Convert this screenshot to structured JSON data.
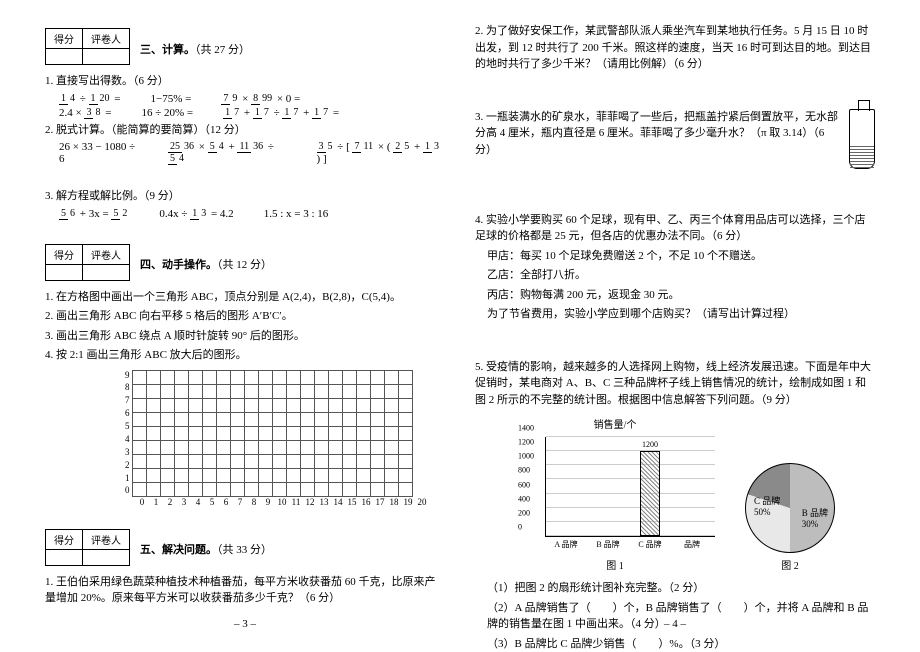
{
  "scorebox": {
    "col1": "得分",
    "col2": "评卷人"
  },
  "section3": {
    "title": "三、计算。",
    "points": "（共 27 分）",
    "q1": {
      "text": "1. 直接写出得数。（6 分）",
      "items": [
        "1/4 ÷ 1/20 =",
        "1−75% =",
        "7/9 × 8/99 × 0 =",
        "2.4 × 3/8 =",
        "16 ÷ 20% =",
        "1/7 + 1/7 ÷ 1/7 + 1/7 ="
      ]
    },
    "q2": {
      "text": "2. 脱式计算。（能简算的要简算）（12 分）",
      "items": [
        "26 × 33 − 1080 ÷ 6",
        "25/36 × 5/4 + 11/36 ÷ 5/4",
        "3/5 ÷ [ 7/11 × ( 2/5 + 1/3 ) ]"
      ]
    },
    "q3": {
      "text": "3. 解方程或解比例。（9 分）",
      "items": [
        "5/6 + 3x = 5/2",
        "0.4x ÷ 1/3 = 4.2",
        "1.5 : x = 3 : 16"
      ]
    }
  },
  "section4": {
    "title": "四、动手操作。",
    "points": "（共 12 分）",
    "q1": "1. 在方格图中画出一个三角形 ABC，顶点分别是 A(2,4)，B(2,8)，C(5,4)。",
    "q2": "2. 画出三角形 ABC 向右平移 5 格后的图形 A′B′C′。",
    "q3": "3. 画出三角形 ABC 绕点 A 顺时针旋转 90° 后的图形。",
    "q4": "4. 按 2:1 画出三角形 ABC 放大后的图形。",
    "grid": {
      "rows": 9,
      "cols": 20
    },
    "xaxis": [
      "0",
      "1",
      "2",
      "3",
      "4",
      "5",
      "6",
      "7",
      "8",
      "9",
      "10",
      "11",
      "12",
      "13",
      "14",
      "15",
      "16",
      "17",
      "18",
      "19",
      "20"
    ]
  },
  "section5": {
    "title": "五、解决问题。",
    "points": "（共 33 分）",
    "q1": "1. 王伯伯采用绿色蔬菜种植技术种植番茄，每平方米收获番茄 60 千克，比原来产量增加 20%。原来每平方米可以收获番茄多少千克？（6 分）",
    "q2": "2. 为了做好安保工作，某武警部队派人乘坐汽车到某地执行任务。5 月 15 日 10 时出发，到 12 时共行了 200 千米。照这样的速度，当天 16 时可到达目的地。到达目的地时共行了多少千米？（请用比例解）（6 分）",
    "q3": "3. 一瓶装满水的矿泉水，菲菲喝了一些后，把瓶盖拧紧后倒置放平，无水部分高 4 厘米，瓶内直径是 6 厘米。菲菲喝了多少毫升水？（π 取 3.14）（6 分）",
    "q4": {
      "stem": "4. 实验小学要购买 60 个足球，现有甲、乙、丙三个体育用品店可以选择，三个店足球的价格都是 25 元，但各店的优惠办法不同。（6 分）",
      "a": "甲店：每买 10 个足球免费赠送 2 个，不足 10 个不赠送。",
      "b": "乙店：全部打八折。",
      "c": "丙店：购物每满 200 元，返现金 30 元。",
      "ask": "为了节省费用，实验小学应到哪个店购买？（请写出计算过程）"
    },
    "q5": {
      "stem": "5. 受疫情的影响，越来越多的人选择网上购物，线上经济发展迅速。下面是年中大促销时，某电商对 A、B、C 三种品牌杯子线上销售情况的统计，绘制成如图 1 和图 2 所示的不完整的统计图。根据图中信息解答下列问题。（9 分）",
      "chart_title": "销售量/个",
      "bars": {
        "yticks": [
          0,
          200,
          400,
          600,
          800,
          1000,
          1200,
          1400
        ],
        "categories": [
          "A 品牌",
          "B 品牌",
          "C 品牌",
          "品牌"
        ],
        "values": [
          null,
          null,
          1200,
          null
        ],
        "bar_color": "#999",
        "known_bar_index": 2,
        "known_bar_label": "1200"
      },
      "pie": {
        "slices": [
          {
            "label": "C 品牌",
            "pct": 50,
            "color": "#bdbdbd"
          },
          {
            "label": "B 品牌",
            "pct": 30,
            "color": "#e8e8e8"
          },
          {
            "label": "A 品牌",
            "pct": 20,
            "color": "#8a8a8a"
          }
        ],
        "labels_shown": [
          "C 品牌 50%",
          "B 品牌 30%"
        ]
      },
      "fig1": "图 1",
      "fig2": "图 2",
      "sub1": "（1）把图 2 的扇形统计图补充完整。（2 分）",
      "sub2": "（2）A 品牌销售了（　　）个，B 品牌销售了（　　）个，并将 A 品牌和 B 品牌的销售量在图 1 中画出来。（4 分）",
      "sub3": "（3）B 品牌比 C 品牌少销售（　　）%。（3 分）"
    }
  },
  "pagenum": {
    "p3": "– 3 –",
    "p4": "– 4 –"
  }
}
